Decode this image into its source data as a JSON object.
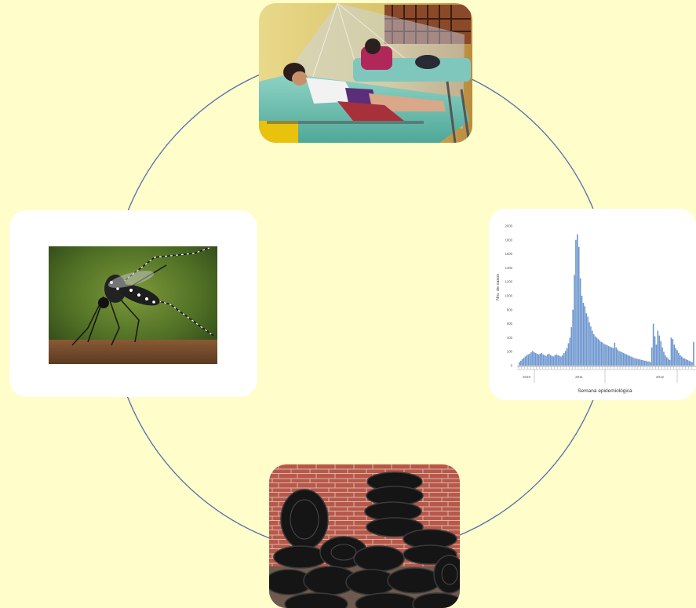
{
  "diagram": {
    "type": "cycle",
    "nodes": [
      {
        "id": "hospital",
        "position": "top",
        "image": "hospital-patients-under-mosquito-nets-photo"
      },
      {
        "id": "cases-chart",
        "position": "right",
        "image": "epidemic-curve-histogram"
      },
      {
        "id": "breeding-sites",
        "position": "bottom",
        "image": "discarded-tires-pile-photo"
      },
      {
        "id": "mosquito",
        "position": "left",
        "image": "aedes-mosquito-photo"
      }
    ],
    "connector_color": "#4F6FAF"
  },
  "chart_data": {
    "type": "bar",
    "ylabel": "Nro. de casos",
    "xlabel": "Semana epidemiológica",
    "ylim": [
      0,
      2000
    ],
    "y_ticks": [
      "2000",
      "1800",
      "1600",
      "1400",
      "1200",
      "1000",
      "800",
      "600",
      "400",
      "200",
      "0"
    ],
    "x_year_labels": [
      "2010",
      "2011",
      "2012"
    ],
    "values": [
      50,
      70,
      90,
      110,
      130,
      150,
      160,
      170,
      190,
      210,
      190,
      180,
      170,
      160,
      170,
      180,
      160,
      150,
      140,
      160,
      170,
      150,
      140,
      130,
      150,
      160,
      150,
      140,
      130,
      150,
      180,
      210,
      250,
      320,
      400,
      550,
      800,
      1300,
      1800,
      1880,
      1700,
      1250,
      1000,
      900,
      850,
      750,
      700,
      620,
      560,
      500,
      450,
      420,
      400,
      380,
      360,
      340,
      330,
      310,
      300,
      290,
      280,
      270,
      260,
      250,
      330,
      260,
      230,
      210,
      200,
      190,
      180,
      170,
      160,
      150,
      140,
      130,
      120,
      110,
      100,
      100,
      90,
      90,
      80,
      80,
      70,
      70,
      60,
      60,
      50,
      260,
      600,
      420,
      300,
      500,
      430,
      350,
      260,
      200,
      150,
      120,
      100,
      80,
      400,
      380,
      300,
      250,
      220,
      180,
      150,
      130,
      110,
      100,
      90,
      80,
      70,
      60,
      50,
      340
    ]
  }
}
